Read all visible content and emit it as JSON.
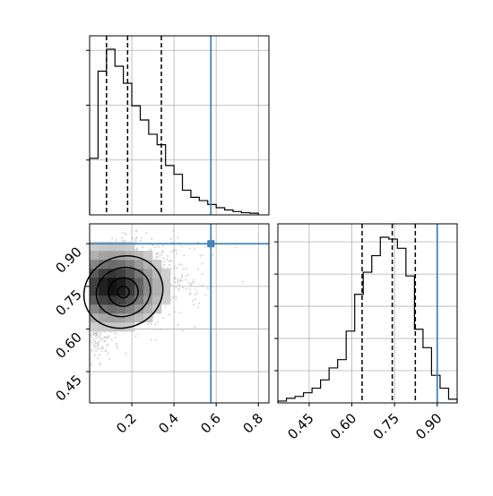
{
  "chart_data": [
    {
      "panel": "top-left",
      "type": "histogram",
      "parameter": "x",
      "x_range": [
        0.0,
        0.85
      ],
      "grid": true,
      "bins": [
        {
          "x0": 0.0,
          "x1": 0.04,
          "count": 103
        },
        {
          "x0": 0.04,
          "x1": 0.08,
          "count": 262
        },
        {
          "x0": 0.08,
          "x1": 0.12,
          "count": 302
        },
        {
          "x0": 0.12,
          "x1": 0.16,
          "count": 271
        },
        {
          "x0": 0.16,
          "x1": 0.2,
          "count": 240
        },
        {
          "x0": 0.2,
          "x1": 0.24,
          "count": 199
        },
        {
          "x0": 0.24,
          "x1": 0.28,
          "count": 173
        },
        {
          "x0": 0.28,
          "x1": 0.32,
          "count": 147
        },
        {
          "x0": 0.32,
          "x1": 0.36,
          "count": 128
        },
        {
          "x0": 0.36,
          "x1": 0.4,
          "count": 90
        },
        {
          "x0": 0.4,
          "x1": 0.44,
          "count": 74
        },
        {
          "x0": 0.44,
          "x1": 0.48,
          "count": 45
        },
        {
          "x0": 0.48,
          "x1": 0.52,
          "count": 32
        },
        {
          "x0": 0.52,
          "x1": 0.56,
          "count": 26
        },
        {
          "x0": 0.56,
          "x1": 0.6,
          "count": 19
        },
        {
          "x0": 0.6,
          "x1": 0.64,
          "count": 13
        },
        {
          "x0": 0.64,
          "x1": 0.68,
          "count": 9
        },
        {
          "x0": 0.68,
          "x1": 0.72,
          "count": 6
        },
        {
          "x0": 0.72,
          "x1": 0.76,
          "count": 4
        },
        {
          "x0": 0.76,
          "x1": 0.8,
          "count": 3
        }
      ],
      "quantile_lines": [
        0.08,
        0.18,
        0.34
      ],
      "truth_line": 0.575
    },
    {
      "panel": "bottom-left",
      "type": "scatter_density",
      "x_range": [
        0.0,
        0.85
      ],
      "y_range": [
        0.34,
        0.97
      ],
      "x_ticks": [
        "0.2",
        "0.4",
        "0.6",
        "0.8"
      ],
      "y_ticks": [
        "0.45",
        "0.60",
        "0.75",
        "0.90"
      ],
      "density_peak": {
        "x": 0.11,
        "y": 0.75
      },
      "contour_levels": 4,
      "truth_point": {
        "x": 0.575,
        "y": 0.9
      },
      "grid": true
    },
    {
      "panel": "bottom-right",
      "type": "histogram",
      "parameter": "y",
      "x_range": [
        0.34,
        0.97
      ],
      "x_ticks": [
        "0.45",
        "0.60",
        "0.75",
        "0.90"
      ],
      "grid": true,
      "bins": [
        {
          "x0": 0.34,
          "x1": 0.37,
          "count": 2
        },
        {
          "x0": 0.37,
          "x1": 0.4,
          "count": 5
        },
        {
          "x0": 0.4,
          "x1": 0.43,
          "count": 7
        },
        {
          "x0": 0.43,
          "x1": 0.46,
          "count": 11
        },
        {
          "x0": 0.46,
          "x1": 0.49,
          "count": 16
        },
        {
          "x0": 0.49,
          "x1": 0.52,
          "count": 25
        },
        {
          "x0": 0.52,
          "x1": 0.55,
          "count": 38
        },
        {
          "x0": 0.55,
          "x1": 0.58,
          "count": 47
        },
        {
          "x0": 0.58,
          "x1": 0.61,
          "count": 78
        },
        {
          "x0": 0.61,
          "x1": 0.64,
          "count": 118
        },
        {
          "x0": 0.64,
          "x1": 0.67,
          "count": 142
        },
        {
          "x0": 0.67,
          "x1": 0.7,
          "count": 160
        },
        {
          "x0": 0.7,
          "x1": 0.73,
          "count": 180
        },
        {
          "x0": 0.73,
          "x1": 0.76,
          "count": 178
        },
        {
          "x0": 0.76,
          "x1": 0.79,
          "count": 168
        },
        {
          "x0": 0.79,
          "x1": 0.82,
          "count": 138
        },
        {
          "x0": 0.82,
          "x1": 0.85,
          "count": 80
        },
        {
          "x0": 0.85,
          "x1": 0.88,
          "count": 60
        },
        {
          "x0": 0.88,
          "x1": 0.91,
          "count": 30
        },
        {
          "x0": 0.91,
          "x1": 0.94,
          "count": 16
        },
        {
          "x0": 0.94,
          "x1": 0.97,
          "count": 4
        }
      ],
      "quantile_lines": [
        0.636,
        0.742,
        0.823
      ],
      "truth_line": 0.9
    }
  ],
  "colors": {
    "truth": "#4682b4",
    "line": "#000000",
    "grid": "#b0b0b0",
    "points": "#b4b4b4"
  }
}
